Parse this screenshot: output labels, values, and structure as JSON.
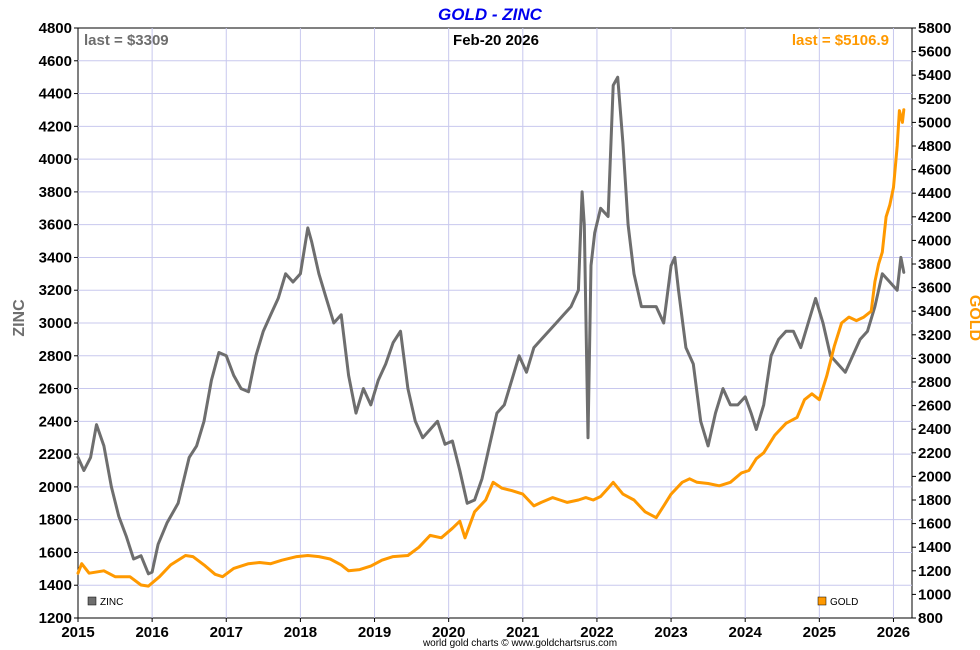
{
  "chart_data": {
    "type": "line",
    "title": "GOLD - ZINC",
    "date_label": "Feb-20  2026",
    "source": "world gold charts © www.goldchartsrus.com",
    "left_axis": {
      "label": "ZINC",
      "range": [
        1200,
        4800
      ],
      "ticks": [
        1200,
        1400,
        1600,
        1800,
        2000,
        2200,
        2400,
        2600,
        2800,
        3000,
        3200,
        3400,
        3600,
        3800,
        4000,
        4200,
        4400,
        4600,
        4800
      ],
      "color": "#6e6e6e"
    },
    "right_axis": {
      "label": "GOLD",
      "range": [
        800,
        5800
      ],
      "ticks": [
        800,
        1000,
        1200,
        1400,
        1600,
        1800,
        2000,
        2200,
        2400,
        2600,
        2800,
        3000,
        3200,
        3400,
        3600,
        3800,
        4000,
        4200,
        4400,
        4600,
        4800,
        5000,
        5200,
        5400,
        5600,
        5800
      ],
      "color": "#ff9900"
    },
    "x_axis": {
      "range": [
        2015.0,
        2026.25
      ],
      "ticks": [
        2015,
        2016,
        2017,
        2018,
        2019,
        2020,
        2021,
        2022,
        2023,
        2024,
        2025,
        2026
      ]
    },
    "grid": true,
    "legend": {
      "placement": "bottom",
      "entries": [
        "ZINC",
        "GOLD"
      ]
    },
    "annotations": {
      "last_left": "last = $3309",
      "last_right": "last = $5106.9"
    },
    "series": [
      {
        "name": "ZINC",
        "axis": "left",
        "color": "#6e6e6e",
        "x": [
          2015.0,
          2015.08,
          2015.17,
          2015.25,
          2015.35,
          2015.45,
          2015.55,
          2015.65,
          2015.75,
          2015.85,
          2015.95,
          2016.0,
          2016.08,
          2016.2,
          2016.35,
          2016.5,
          2016.6,
          2016.7,
          2016.8,
          2016.9,
          2017.0,
          2017.1,
          2017.2,
          2017.3,
          2017.4,
          2017.5,
          2017.6,
          2017.7,
          2017.8,
          2017.9,
          2018.0,
          2018.1,
          2018.15,
          2018.25,
          2018.35,
          2018.45,
          2018.55,
          2018.65,
          2018.75,
          2018.85,
          2018.95,
          2019.05,
          2019.15,
          2019.25,
          2019.35,
          2019.45,
          2019.55,
          2019.65,
          2019.75,
          2019.85,
          2019.95,
          2020.05,
          2020.15,
          2020.25,
          2020.35,
          2020.45,
          2020.55,
          2020.65,
          2020.75,
          2020.85,
          2020.95,
          2021.05,
          2021.15,
          2021.25,
          2021.35,
          2021.45,
          2021.55,
          2021.65,
          2021.75,
          2021.8,
          2021.83,
          2021.88,
          2021.92,
          2021.97,
          2022.05,
          2022.15,
          2022.22,
          2022.28,
          2022.35,
          2022.42,
          2022.5,
          2022.6,
          2022.7,
          2022.8,
          2022.9,
          2023.0,
          2023.05,
          2023.1,
          2023.2,
          2023.3,
          2023.4,
          2023.5,
          2023.6,
          2023.7,
          2023.8,
          2023.9,
          2024.0,
          2024.08,
          2024.15,
          2024.25,
          2024.35,
          2024.45,
          2024.55,
          2024.65,
          2024.75,
          2024.85,
          2024.95,
          2025.05,
          2025.15,
          2025.25,
          2025.35,
          2025.45,
          2025.55,
          2025.65,
          2025.75,
          2025.85,
          2025.95,
          2026.05,
          2026.1,
          2026.14
        ],
        "y": [
          2180,
          2100,
          2180,
          2380,
          2250,
          2000,
          1820,
          1700,
          1560,
          1580,
          1470,
          1480,
          1650,
          1780,
          1900,
          2180,
          2250,
          2400,
          2650,
          2820,
          2800,
          2680,
          2600,
          2580,
          2800,
          2950,
          3050,
          3150,
          3300,
          3250,
          3300,
          3580,
          3500,
          3300,
          3150,
          3000,
          3050,
          2680,
          2450,
          2600,
          2500,
          2650,
          2750,
          2880,
          2950,
          2600,
          2400,
          2300,
          2350,
          2400,
          2260,
          2280,
          2100,
          1900,
          1920,
          2050,
          2250,
          2450,
          2500,
          2650,
          2800,
          2700,
          2850,
          2900,
          2950,
          3000,
          3050,
          3100,
          3200,
          3800,
          3600,
          2300,
          3350,
          3550,
          3700,
          3650,
          4450,
          4500,
          4100,
          3600,
          3300,
          3100,
          3100,
          3100,
          3000,
          3350,
          3400,
          3200,
          2850,
          2750,
          2400,
          2250,
          2450,
          2600,
          2500,
          2500,
          2550,
          2450,
          2350,
          2500,
          2800,
          2900,
          2950,
          2950,
          2850,
          3000,
          3150,
          3000,
          2800,
          2750,
          2700,
          2800,
          2900,
          2950,
          3100,
          3300,
          3250,
          3200,
          3400,
          3309
        ]
      },
      {
        "name": "GOLD",
        "axis": "right",
        "color": "#ff9900",
        "x": [
          2015.0,
          2015.05,
          2015.15,
          2015.35,
          2015.5,
          2015.7,
          2015.85,
          2015.95,
          2016.1,
          2016.25,
          2016.45,
          2016.55,
          2016.7,
          2016.85,
          2016.95,
          2017.1,
          2017.3,
          2017.45,
          2017.6,
          2017.75,
          2017.95,
          2018.1,
          2018.25,
          2018.4,
          2018.55,
          2018.65,
          2018.8,
          2018.95,
          2019.1,
          2019.25,
          2019.45,
          2019.6,
          2019.75,
          2019.9,
          2020.05,
          2020.15,
          2020.22,
          2020.35,
          2020.5,
          2020.6,
          2020.72,
          2020.85,
          2021.0,
          2021.15,
          2021.25,
          2021.4,
          2021.5,
          2021.6,
          2021.75,
          2021.85,
          2021.95,
          2022.05,
          2022.15,
          2022.22,
          2022.35,
          2022.5,
          2022.65,
          2022.8,
          2022.9,
          2023.0,
          2023.15,
          2023.25,
          2023.35,
          2023.5,
          2023.65,
          2023.8,
          2023.95,
          2024.05,
          2024.15,
          2024.25,
          2024.4,
          2024.55,
          2024.7,
          2024.8,
          2024.9,
          2025.0,
          2025.1,
          2025.2,
          2025.3,
          2025.4,
          2025.5,
          2025.6,
          2025.7,
          2025.75,
          2025.8,
          2025.85,
          2025.9,
          2025.95,
          2026.0,
          2026.05,
          2026.08,
          2026.12,
          2026.14
        ],
        "y": [
          1180,
          1260,
          1180,
          1200,
          1150,
          1150,
          1080,
          1070,
          1150,
          1250,
          1330,
          1320,
          1250,
          1170,
          1150,
          1220,
          1260,
          1270,
          1260,
          1290,
          1320,
          1330,
          1320,
          1300,
          1250,
          1200,
          1210,
          1240,
          1290,
          1320,
          1330,
          1400,
          1500,
          1480,
          1560,
          1620,
          1480,
          1700,
          1800,
          1950,
          1900,
          1880,
          1850,
          1750,
          1780,
          1820,
          1800,
          1780,
          1800,
          1820,
          1800,
          1830,
          1900,
          1950,
          1850,
          1800,
          1700,
          1650,
          1750,
          1850,
          1950,
          1980,
          1950,
          1940,
          1920,
          1950,
          2030,
          2050,
          2150,
          2200,
          2350,
          2450,
          2500,
          2650,
          2700,
          2650,
          2850,
          3100,
          3300,
          3350,
          3320,
          3350,
          3400,
          3650,
          3800,
          3900,
          4200,
          4300,
          4450,
          4800,
          5100,
          5000,
          5107
        ]
      }
    ]
  }
}
